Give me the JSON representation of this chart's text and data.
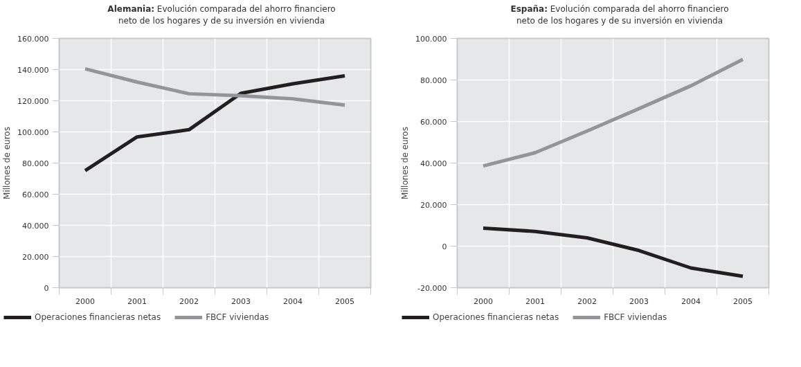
{
  "chart_data": [
    {
      "type": "line",
      "title": "Alemania: Evolución comparada del ahorro financiero neto de los hogares y de su inversión en vivienda",
      "ylabel": "Millones de euros",
      "categories": [
        "2000",
        "2001",
        "2002",
        "2003",
        "2004",
        "2005"
      ],
      "series": [
        {
          "name": "Operaciones financieras netas",
          "color": "#231f20",
          "values": [
            75200,
            96800,
            101400,
            124800,
            130900,
            136000
          ]
        },
        {
          "name": "FBCF viviendas",
          "color": "#939598",
          "values": [
            140500,
            132000,
            124500,
            123200,
            121200,
            117200
          ]
        }
      ],
      "ylim": [
        0,
        160000
      ],
      "yticks": [
        {
          "value": 0,
          "label": "0"
        },
        {
          "value": 20000,
          "label": "20.000"
        },
        {
          "value": 40000,
          "label": "40.000"
        },
        {
          "value": 60000,
          "label": "60.000"
        },
        {
          "value": 80000,
          "label": "80.000"
        },
        {
          "value": 100000,
          "label": "100.000"
        },
        {
          "value": 120000,
          "label": "120.000"
        },
        {
          "value": 140000,
          "label": "140.000"
        },
        {
          "value": 160000,
          "label": "160.000"
        }
      ],
      "grid": true,
      "legend": "bottom",
      "line_style": "solid"
    },
    {
      "type": "line",
      "title": "España: Evolución comparada del ahorro financiero neto de los hogares y de su inversión en vivienda",
      "ylabel": "Millones de euros",
      "categories": [
        "2000",
        "2001",
        "2002",
        "2003",
        "2004",
        "2005"
      ],
      "series": [
        {
          "name": "Operaciones financieras netas",
          "color": "#231f20",
          "values": [
            8700,
            7100,
            4000,
            -2100,
            -10500,
            -14500
          ]
        },
        {
          "name": "FBCF viviendas",
          "color": "#939598",
          "values": [
            38600,
            45000,
            55400,
            66200,
            77200,
            89900
          ]
        }
      ],
      "ylim": [
        -20000,
        100000
      ],
      "yticks": [
        {
          "value": -20000,
          "label": "-20.000"
        },
        {
          "value": 0,
          "label": "0"
        },
        {
          "value": 20000,
          "label": "20.000"
        },
        {
          "value": 40000,
          "label": "40.000"
        },
        {
          "value": 60000,
          "label": "60.000"
        },
        {
          "value": 80000,
          "label": "80.000"
        },
        {
          "value": 100000,
          "label": "100.000"
        }
      ],
      "grid": true,
      "legend": "bottom",
      "line_style": "solid"
    }
  ]
}
